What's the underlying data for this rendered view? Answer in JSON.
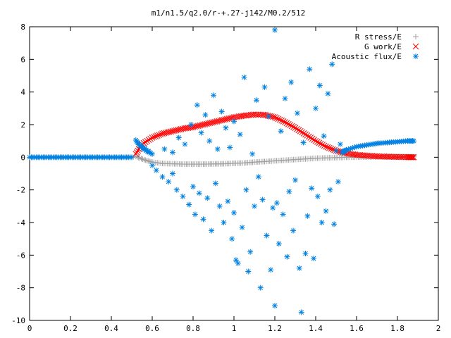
{
  "chart_data": {
    "type": "scatter",
    "title": "m1/n1.5/q2.0/r-+.27-j142/M0.2/512",
    "xlabel": "",
    "ylabel": "",
    "xlim": [
      0,
      2
    ],
    "ylim": [
      -10,
      8
    ],
    "grid": false,
    "legend_position": "top-right",
    "x_ticks": [
      "0",
      "0.2",
      "0.4",
      "0.6",
      "0.8",
      "1",
      "1.2",
      "1.4",
      "1.6",
      "1.8",
      "2"
    ],
    "y_ticks": [
      "-10",
      "-8",
      "-6",
      "-4",
      "-2",
      "0",
      "2",
      "4",
      "6",
      "8"
    ],
    "series": [
      {
        "name": "R stress/E",
        "marker": "+",
        "color": "#a0a0a0",
        "points": [
          [
            0.52,
            0.05
          ],
          [
            0.56,
            -0.15
          ],
          [
            0.6,
            -0.3
          ],
          [
            0.65,
            -0.38
          ],
          [
            0.7,
            -0.4
          ],
          [
            0.75,
            -0.42
          ],
          [
            0.8,
            -0.42
          ],
          [
            0.85,
            -0.42
          ],
          [
            0.9,
            -0.41
          ],
          [
            0.95,
            -0.4
          ],
          [
            1.0,
            -0.37
          ],
          [
            1.05,
            -0.35
          ],
          [
            1.1,
            -0.3
          ],
          [
            1.15,
            -0.26
          ],
          [
            1.2,
            -0.22
          ],
          [
            1.25,
            -0.18
          ],
          [
            1.3,
            -0.14
          ],
          [
            1.35,
            -0.1
          ],
          [
            1.4,
            -0.06
          ],
          [
            1.45,
            -0.04
          ],
          [
            1.5,
            -0.02
          ],
          [
            1.55,
            0.0
          ],
          [
            1.6,
            0.01
          ],
          [
            1.65,
            0.02
          ],
          [
            1.7,
            0.02
          ],
          [
            1.75,
            0.02
          ],
          [
            1.8,
            0.02
          ],
          [
            1.85,
            0.02
          ],
          [
            1.88,
            0.02
          ]
        ]
      },
      {
        "name": "G work/E",
        "marker": "x",
        "color": "#ff0000",
        "points": [
          [
            0.52,
            0.2
          ],
          [
            0.55,
            0.8
          ],
          [
            0.6,
            1.2
          ],
          [
            0.65,
            1.45
          ],
          [
            0.7,
            1.6
          ],
          [
            0.75,
            1.75
          ],
          [
            0.8,
            1.85
          ],
          [
            0.85,
            2.0
          ],
          [
            0.9,
            2.15
          ],
          [
            0.95,
            2.3
          ],
          [
            1.0,
            2.45
          ],
          [
            1.05,
            2.55
          ],
          [
            1.1,
            2.62
          ],
          [
            1.15,
            2.6
          ],
          [
            1.2,
            2.45
          ],
          [
            1.25,
            2.15
          ],
          [
            1.3,
            1.8
          ],
          [
            1.35,
            1.4
          ],
          [
            1.4,
            1.0
          ],
          [
            1.45,
            0.65
          ],
          [
            1.5,
            0.4
          ],
          [
            1.55,
            0.25
          ],
          [
            1.6,
            0.15
          ],
          [
            1.65,
            0.1
          ],
          [
            1.7,
            0.06
          ],
          [
            1.75,
            0.04
          ],
          [
            1.8,
            0.02
          ],
          [
            1.85,
            0.01
          ],
          [
            1.88,
            0.0
          ]
        ]
      },
      {
        "name": "Acoustic flux/E",
        "marker": "*",
        "color": "#0080e0",
        "points": [
          [
            0.0,
            0.0
          ],
          [
            0.05,
            0.0
          ],
          [
            0.1,
            0.0
          ],
          [
            0.15,
            0.0
          ],
          [
            0.2,
            0.0
          ],
          [
            0.25,
            0.0
          ],
          [
            0.3,
            0.0
          ],
          [
            0.35,
            0.0
          ],
          [
            0.4,
            0.0
          ],
          [
            0.45,
            0.0
          ],
          [
            0.5,
            0.0
          ],
          [
            0.52,
            1.05
          ],
          [
            0.54,
            0.7
          ],
          [
            0.57,
            0.4
          ],
          [
            0.6,
            0.2
          ],
          [
            0.53,
            0.9
          ],
          [
            0.6,
            -0.5
          ],
          [
            0.62,
            -0.8
          ],
          [
            0.65,
            -1.2
          ],
          [
            0.66,
            0.5
          ],
          [
            0.68,
            -1.5
          ],
          [
            0.7,
            -1.0
          ],
          [
            0.7,
            0.3
          ],
          [
            0.72,
            -2.0
          ],
          [
            0.73,
            1.2
          ],
          [
            0.75,
            -2.4
          ],
          [
            0.76,
            0.8
          ],
          [
            0.78,
            -2.9
          ],
          [
            0.79,
            2.0
          ],
          [
            0.8,
            -1.8
          ],
          [
            0.81,
            -3.5
          ],
          [
            0.82,
            3.2
          ],
          [
            0.83,
            -2.2
          ],
          [
            0.84,
            1.5
          ],
          [
            0.85,
            -3.8
          ],
          [
            0.86,
            2.6
          ],
          [
            0.87,
            -2.5
          ],
          [
            0.88,
            1.0
          ],
          [
            0.89,
            -4.5
          ],
          [
            0.9,
            3.8
          ],
          [
            0.91,
            -1.6
          ],
          [
            0.92,
            0.5
          ],
          [
            0.93,
            -3.0
          ],
          [
            0.94,
            2.8
          ],
          [
            0.95,
            -4.0
          ],
          [
            0.96,
            1.8
          ],
          [
            0.97,
            -2.7
          ],
          [
            0.98,
            0.6
          ],
          [
            0.99,
            -5.0
          ],
          [
            1.0,
            -3.4
          ],
          [
            1.0,
            2.2
          ],
          [
            1.01,
            -6.3
          ],
          [
            1.02,
            -6.5
          ],
          [
            1.03,
            1.4
          ],
          [
            1.04,
            -4.3
          ],
          [
            1.05,
            4.9
          ],
          [
            1.06,
            -2.0
          ],
          [
            1.07,
            -7.0
          ],
          [
            1.08,
            -5.8
          ],
          [
            1.09,
            0.2
          ],
          [
            1.1,
            -3.0
          ],
          [
            1.11,
            3.5
          ],
          [
            1.12,
            -1.2
          ],
          [
            1.13,
            -8.0
          ],
          [
            1.14,
            -2.6
          ],
          [
            1.15,
            4.3
          ],
          [
            1.16,
            -4.8
          ],
          [
            1.17,
            2.5
          ],
          [
            1.18,
            -6.9
          ],
          [
            1.19,
            -3.1
          ],
          [
            1.2,
            7.8
          ],
          [
            1.2,
            -9.1
          ],
          [
            1.21,
            -2.8
          ],
          [
            1.22,
            -5.3
          ],
          [
            1.23,
            1.6
          ],
          [
            1.24,
            -3.5
          ],
          [
            1.25,
            3.6
          ],
          [
            1.26,
            -6.1
          ],
          [
            1.27,
            -2.1
          ],
          [
            1.28,
            4.6
          ],
          [
            1.29,
            -4.5
          ],
          [
            1.3,
            -1.4
          ],
          [
            1.31,
            2.7
          ],
          [
            1.32,
            -6.8
          ],
          [
            1.33,
            -9.5
          ],
          [
            1.34,
            0.9
          ],
          [
            1.35,
            -5.9
          ],
          [
            1.36,
            -3.6
          ],
          [
            1.37,
            5.4
          ],
          [
            1.38,
            -1.9
          ],
          [
            1.39,
            -6.2
          ],
          [
            1.4,
            3.0
          ],
          [
            1.41,
            -2.4
          ],
          [
            1.42,
            4.4
          ],
          [
            1.43,
            -4.0
          ],
          [
            1.44,
            1.3
          ],
          [
            1.45,
            -3.3
          ],
          [
            1.46,
            3.9
          ],
          [
            1.47,
            -2.0
          ],
          [
            1.48,
            5.7
          ],
          [
            1.49,
            -4.1
          ],
          [
            1.5,
            0.4
          ],
          [
            1.51,
            -1.5
          ],
          [
            1.52,
            0.8
          ],
          [
            1.53,
            0.3
          ],
          [
            1.55,
            0.45
          ],
          [
            1.6,
            0.65
          ],
          [
            1.65,
            0.75
          ],
          [
            1.7,
            0.85
          ],
          [
            1.75,
            0.9
          ],
          [
            1.8,
            0.95
          ],
          [
            1.85,
            1.0
          ],
          [
            1.88,
            1.0
          ]
        ]
      }
    ]
  }
}
